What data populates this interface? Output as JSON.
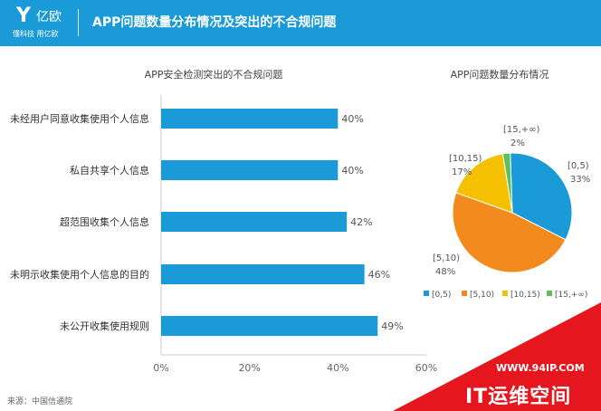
{
  "header": {
    "logo_mark": "Y",
    "logo_name": "亿欧",
    "logo_sub": "懂科技 用亿欧",
    "title": "APP问题数量分布情况及突出的不合规问题"
  },
  "source": "来源：中国信通院",
  "watermark": {
    "url": "WWW.94IP.COM",
    "brand": "IT运维空间"
  },
  "colors": {
    "header": "#1a9bd7",
    "bar": "#1a9bd7",
    "watermark": "#e5161d"
  },
  "chart_data": [
    {
      "type": "bar",
      "orientation": "horizontal",
      "title": "APP安全检测突出的不合规问题",
      "categories": [
        "未经用户同意收集使用个人信息",
        "私自共享个人信息",
        "超范围收集个人信息",
        "未明示收集使用个人信息的目的",
        "未公开收集使用规则"
      ],
      "values": [
        40,
        40,
        42,
        46,
        49
      ],
      "value_labels": [
        "40%",
        "40%",
        "42%",
        "46%",
        "49%"
      ],
      "xlim": [
        0,
        60
      ],
      "xticks": [
        "0%",
        "20%",
        "40%",
        "60%"
      ],
      "grid": false
    },
    {
      "type": "pie",
      "title": "APP问题数量分布情况",
      "slices": [
        {
          "label": "[0,5)",
          "value": 33,
          "value_label": "33%",
          "color": "#1a9bd7"
        },
        {
          "label": "[5,10)",
          "value": 48,
          "value_label": "48%",
          "color": "#f28a1e"
        },
        {
          "label": "[10,15)",
          "value": 17,
          "value_label": "17%",
          "color": "#f5c000"
        },
        {
          "label": "[15,+∞)",
          "value": 2,
          "value_label": "2%",
          "color": "#5cc15a"
        }
      ],
      "legend": [
        "[0,5)",
        "[5,10)",
        "[10,15)",
        "[15,+∞)"
      ],
      "legend_position": "bottom"
    }
  ]
}
